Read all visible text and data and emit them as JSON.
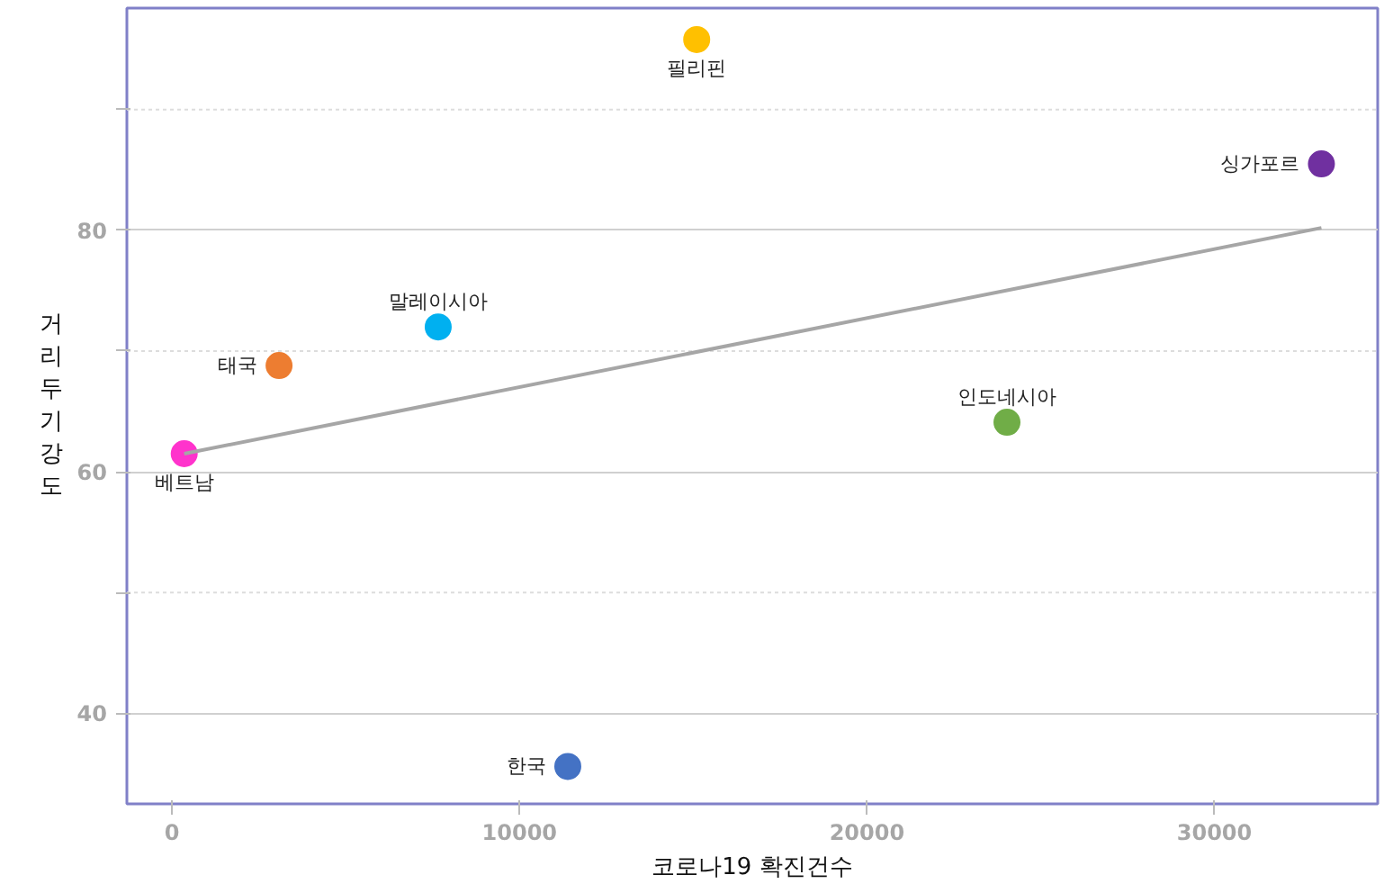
{
  "chart_data": {
    "type": "scatter",
    "xlabel": "코로나19 확진건수",
    "ylabel": "거리두기강도",
    "xlim": [
      -1300,
      34700
    ],
    "ylim": [
      32.5,
      98.4
    ],
    "xticks": [
      0,
      10000,
      20000,
      30000
    ],
    "yticks": [
      40,
      {
        "value": 50,
        "label": null
      },
      60,
      {
        "value": 70,
        "label": null
      },
      80,
      {
        "value": 90,
        "label": null
      }
    ],
    "grid": "y",
    "marker": "circle",
    "series": [
      {
        "name": "필리핀",
        "color": "#ffc000",
        "x": [
          15100
        ],
        "values": [
          95.8
        ]
      },
      {
        "name": "싱가포르",
        "color": "#7030a0",
        "x": [
          33080
        ],
        "values": [
          85.5
        ]
      },
      {
        "name": "말레이시아",
        "color": "#00b0f0",
        "x": [
          7660
        ],
        "values": [
          72.0
        ]
      },
      {
        "name": "태국",
        "color": "#ed7d31",
        "x": [
          3080
        ],
        "values": [
          68.8
        ]
      },
      {
        "name": "베트남",
        "color": "#ff33cc",
        "x": [
          350
        ],
        "values": [
          61.5
        ]
      },
      {
        "name": "인도네시아",
        "color": "#70ad47",
        "x": [
          24030
        ],
        "values": [
          64.1
        ]
      },
      {
        "name": "한국",
        "color": "#4472c4",
        "x": [
          11390
        ],
        "values": [
          35.6
        ]
      },
      {
        "type": "line",
        "color": "#a6a6a6",
        "x": [
          350,
          33080
        ],
        "values": [
          61.5,
          80.2
        ],
        "line_style": "solid",
        "marker": "none"
      }
    ]
  }
}
